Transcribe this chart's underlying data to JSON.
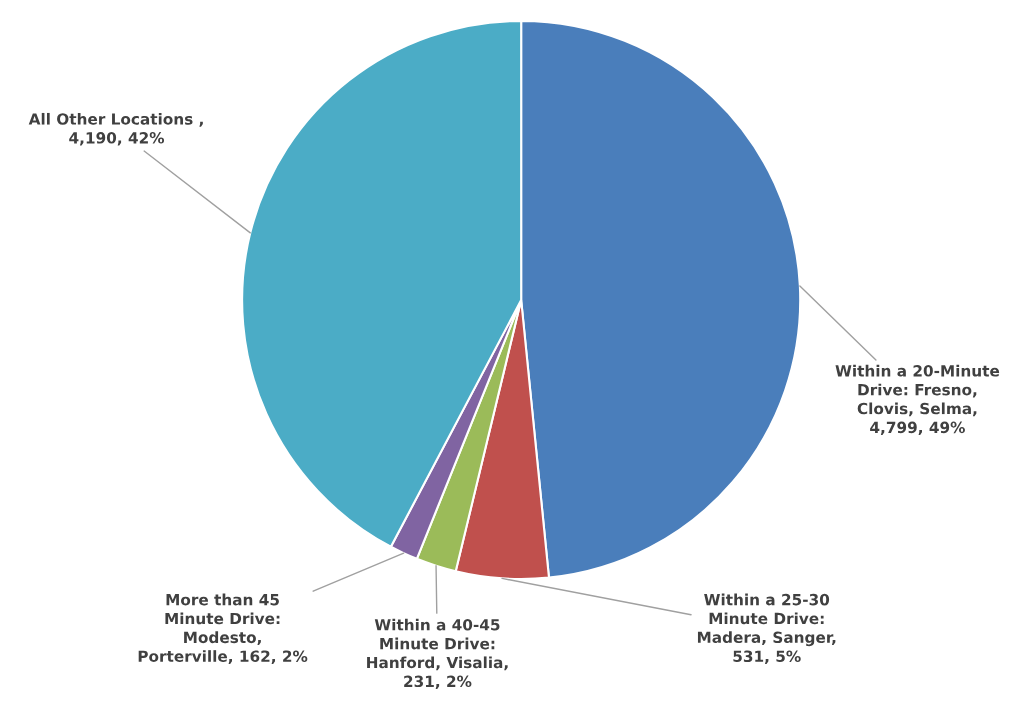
{
  "chart_data": {
    "type": "pie",
    "categories": [
      "Within a 20-Minute\nDrive: Fresno,\nClovis, Selma,\n4,799, 49%",
      "Within a 25-30\nMinute Drive:\nMadera, Sanger,\n531, 5%",
      "Within a 40-45\nMinute Drive:\nHanford, Visalia,\n231, 2%",
      "More than 45\nMinute Drive:\nModesto,\nPorterville, 162, 2%",
      "All Other Locations ,\n4,190, 42%"
    ],
    "values": [
      4799,
      531,
      231,
      162,
      4190
    ],
    "colors": [
      "#4a7ebb",
      "#c0504d",
      "#9bbb59",
      "#8064a2",
      "#4bacc6"
    ]
  }
}
